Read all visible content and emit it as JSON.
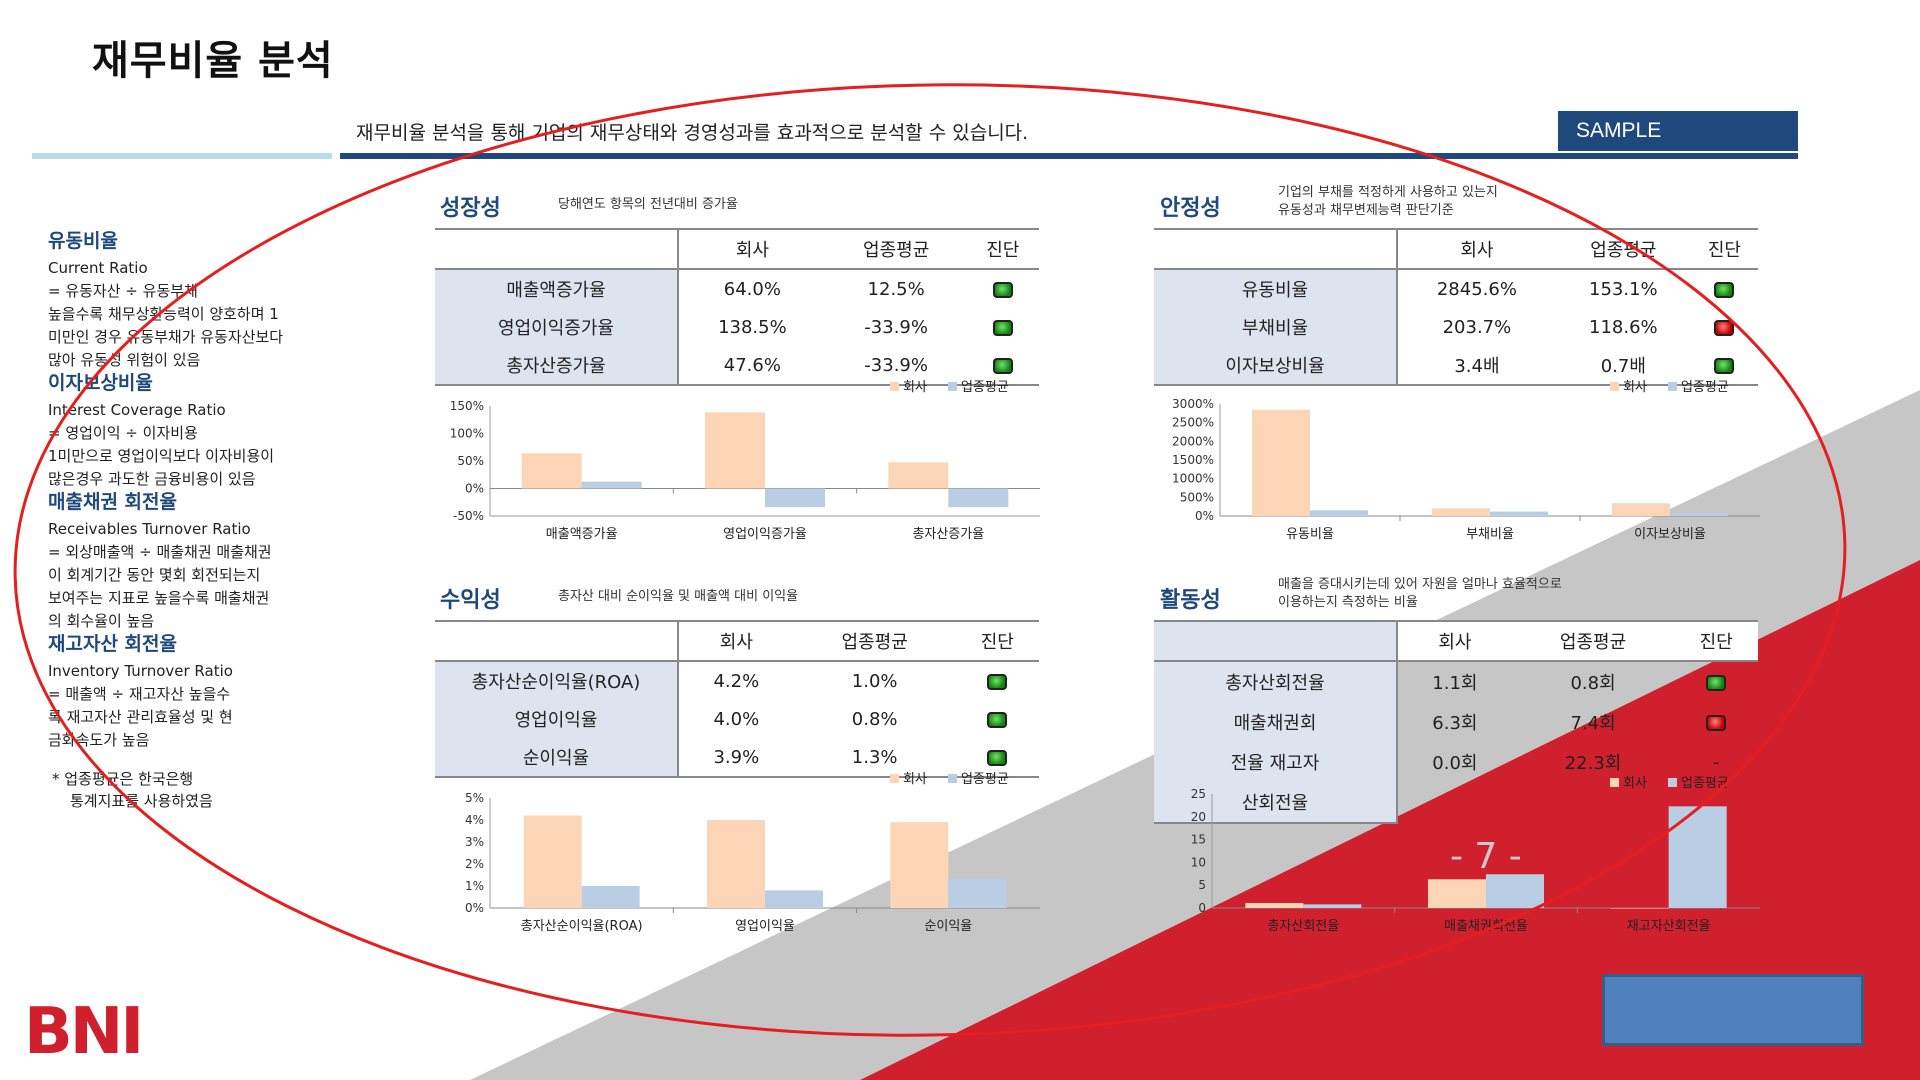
{
  "title": "재무비율 분석",
  "subtitle": "재무비율 분석을 통해 기업의 재무상태와 경영성과를 효과적으로 분석할 수 있습니다.",
  "badge": "SAMPLE",
  "logo_text": "BNI",
  "page_number": "- 7 -",
  "colors": {
    "navy": "#1f497d",
    "red": "#d0202e",
    "company": "#fbd5b5",
    "industry": "#b9cde5"
  },
  "sidebar": {
    "sections": [
      {
        "title": "유동비율",
        "lines": [
          "Current Ratio",
          "= 유동자산 ÷ 유동부채",
          "높을수록 채무상환능력이 양호하며 1",
          "미만인 경우 유동부채가 유동자산보다",
          "많아 유동성 위험이 있음"
        ]
      },
      {
        "title": "이자보상비율",
        "lines": [
          "Interest Coverage Ratio",
          "= 영업이익 ÷ 이자비용",
          "1미만으로 영업이익보다 이자비용이",
          "많은경우 과도한 금융비용이 있음"
        ]
      },
      {
        "title": "매출채권 회전율",
        "lines": [
          "Receivables Turnover Ratio",
          "= 외상매출액 ÷ 매출채권 매출채권",
          "이 회계기간 동안 몇회 회전되는지",
          "보여주는 지표로 높을수록 매출채권",
          "의 회수율이 높음"
        ]
      },
      {
        "title": "재고자산 회전율",
        "lines": [
          "Inventory Turnover Ratio",
          "= 매출액 ÷ 재고자산 높을수",
          "록 재고자산 관리효율성 및 현",
          "금화속도가 높음"
        ]
      }
    ],
    "footnote": [
      "* 업종평균은 한국은행",
      "통계지표를 사용하였음"
    ]
  },
  "table_headers": {
    "company": "회사",
    "industry": "업종평균",
    "diagnosis": "진단"
  },
  "sections": {
    "growth": {
      "title": "성장성",
      "desc": [
        "당해연도 항목의 전년대비 증가율"
      ],
      "rows": [
        {
          "name": "매출액증가율",
          "company": "64.0%",
          "industry": "12.5%",
          "light": "green"
        },
        {
          "name": "영업이익증가율",
          "company": "138.5%",
          "industry": "-33.9%",
          "light": "green"
        },
        {
          "name": "총자산증가율",
          "company": "47.6%",
          "industry": "-33.9%",
          "light": "green"
        }
      ]
    },
    "stability": {
      "title": "안정성",
      "desc": [
        "기업의 부채를 적정하게 사용하고 있는지",
        "유동성과 채무변제능력 판단기준"
      ],
      "rows": [
        {
          "name": "유동비율",
          "company": "2845.6%",
          "industry": "153.1%",
          "light": "green"
        },
        {
          "name": "부채비율",
          "company": "203.7%",
          "industry": "118.6%",
          "light": "red"
        },
        {
          "name": "이자보상비율",
          "company": "3.4배",
          "industry": "0.7배",
          "light": "green"
        }
      ]
    },
    "profitability": {
      "title": "수익성",
      "desc": [
        "총자산 대비 순이익율 및 매출액 대비 이익율"
      ],
      "rows": [
        {
          "name": "총자산순이익율(ROA)",
          "company": "4.2%",
          "industry": "1.0%",
          "light": "green"
        },
        {
          "name": "영업이익율",
          "company": "4.0%",
          "industry": "0.8%",
          "light": "green"
        },
        {
          "name": "순이익율",
          "company": "3.9%",
          "industry": "1.3%",
          "light": "green"
        }
      ]
    },
    "activity": {
      "title": "활동성",
      "desc": [
        "매출을 증대시키는데 있어 자원을 얼마나 효율적으로",
        "이용하는지 측정하는 비율"
      ],
      "rows": [
        {
          "name": "총자산회전율",
          "company": "1.1회",
          "industry": "0.8회",
          "light": "green"
        },
        {
          "name": "매출채권회",
          "company": "6.3회",
          "industry": "7.4회",
          "light": "red"
        },
        {
          "name": "전율 재고자",
          "company": "0.0회",
          "industry": "22.3회",
          "light": "none",
          "diag_text": "-"
        },
        {
          "name": "산회전율",
          "company": "",
          "industry": "",
          "light": "none"
        }
      ]
    }
  },
  "chart_data": [
    {
      "type": "bar",
      "categories": [
        "매출액증가율",
        "영업이익증가율",
        "총자산증가율"
      ],
      "series": [
        {
          "name": "회사",
          "values": [
            64.0,
            138.5,
            47.6
          ]
        },
        {
          "name": "업종평균",
          "values": [
            12.5,
            -33.9,
            -33.9
          ]
        }
      ],
      "ylim": [
        -50,
        150
      ],
      "yticks": [
        "150%",
        "100%",
        "50%",
        "0%",
        "-50%"
      ],
      "legend": "top-right"
    },
    {
      "type": "bar",
      "categories": [
        "유동비율",
        "부채비율",
        "이자보상비율"
      ],
      "series": [
        {
          "name": "회사",
          "values": [
            2845.6,
            203.7,
            340
          ]
        },
        {
          "name": "업종평균",
          "values": [
            153.1,
            118.6,
            70
          ]
        }
      ],
      "ylim": [
        0,
        3000
      ],
      "yticks": [
        "3000%",
        "2500%",
        "2000%",
        "1500%",
        "1000%",
        "500%",
        "0%"
      ],
      "legend": "top-right"
    },
    {
      "type": "bar",
      "categories": [
        "총자산순이익율(ROA)",
        "영업이익율",
        "순이익율"
      ],
      "series": [
        {
          "name": "회사",
          "values": [
            4.2,
            4.0,
            3.9
          ]
        },
        {
          "name": "업종평균",
          "values": [
            1.0,
            0.8,
            1.3
          ]
        }
      ],
      "ylim": [
        0,
        5
      ],
      "yticks": [
        "5%",
        "4%",
        "3%",
        "2%",
        "1%",
        "0%"
      ],
      "legend": "top-right"
    },
    {
      "type": "bar",
      "categories": [
        "총자산회전율",
        "매출채권회전율",
        "재고자산회전율"
      ],
      "series": [
        {
          "name": "회사",
          "values": [
            1.1,
            6.3,
            0.0
          ]
        },
        {
          "name": "업종평균",
          "values": [
            0.8,
            7.4,
            22.3
          ]
        }
      ],
      "ylim": [
        0,
        25
      ],
      "yticks": [
        "25",
        "20",
        "15",
        "10",
        "5",
        "0"
      ],
      "legend": "top-right"
    }
  ]
}
